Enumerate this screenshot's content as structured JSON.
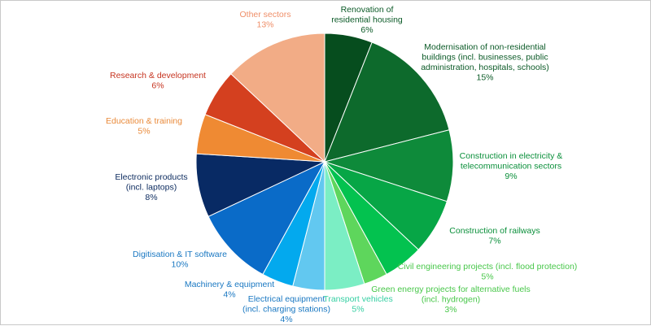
{
  "chart_data": {
    "type": "pie",
    "title": "",
    "legend": "none",
    "slices": [
      {
        "label_lines": [
          "Renovation of",
          "residential housing"
        ],
        "value_label": "6%",
        "value": 6,
        "color": "#064d1e"
      },
      {
        "label_lines": [
          "Modernisation of non-residential",
          "buildings (incl. businesses, public",
          "administration, hospitals, schools)"
        ],
        "value_label": "15%",
        "value": 15,
        "color": "#0d6a2c"
      },
      {
        "label_lines": [
          "Construction in electricity &",
          "telecommunication sectors"
        ],
        "value_label": "9%",
        "value": 9,
        "color": "#0e8a3a"
      },
      {
        "label_lines": [
          "Construction of railways"
        ],
        "value_label": "7%",
        "value": 7,
        "color": "#07a646"
      },
      {
        "label_lines": [
          "Civil engineering projects (incl. flood protection)"
        ],
        "value_label": "5%",
        "value": 5,
        "color": "#03c24f"
      },
      {
        "label_lines": [
          "Green energy projects for alternative fuels",
          "(incl. hydrogen)"
        ],
        "value_label": "3%",
        "value": 3,
        "color": "#5ed65c"
      },
      {
        "label_lines": [
          "Transport vehicles"
        ],
        "value_label": "5%",
        "value": 5,
        "color": "#7beec4"
      },
      {
        "label_lines": [
          "Electrical equipment",
          "(incl. charging stations)"
        ],
        "value_label": "4%",
        "value": 4,
        "color": "#62c8f0"
      },
      {
        "label_lines": [
          "Machinery & equipment"
        ],
        "value_label": "4%",
        "value": 4,
        "color": "#03a9ee"
      },
      {
        "label_lines": [
          "Digitisation & IT software"
        ],
        "value_label": "10%",
        "value": 10,
        "color": "#0a6bc8"
      },
      {
        "label_lines": [
          "Electronic products",
          "(incl. laptops)"
        ],
        "value_label": "8%",
        "value": 8,
        "color": "#082a64"
      },
      {
        "label_lines": [
          "Education & training"
        ],
        "value_label": "5%",
        "value": 5,
        "color": "#ef8a33"
      },
      {
        "label_lines": [
          "Research & development"
        ],
        "value_label": "6%",
        "value": 6,
        "color": "#d4401f"
      },
      {
        "label_lines": [
          "Other sectors"
        ],
        "value_label": "13%",
        "value": 13,
        "color": "#f2ac86"
      }
    ],
    "label_colors": {
      "green_dark": "#0b5a27",
      "green_mid": "#0a8f3a",
      "green_light": "#48c74a",
      "teal": "#35cfa2",
      "blue_mid": "#1a78c2",
      "navy": "#0b2a5e",
      "orange": "#e98a3a",
      "red": "#c63420",
      "salmon": "#ef8f69"
    }
  }
}
